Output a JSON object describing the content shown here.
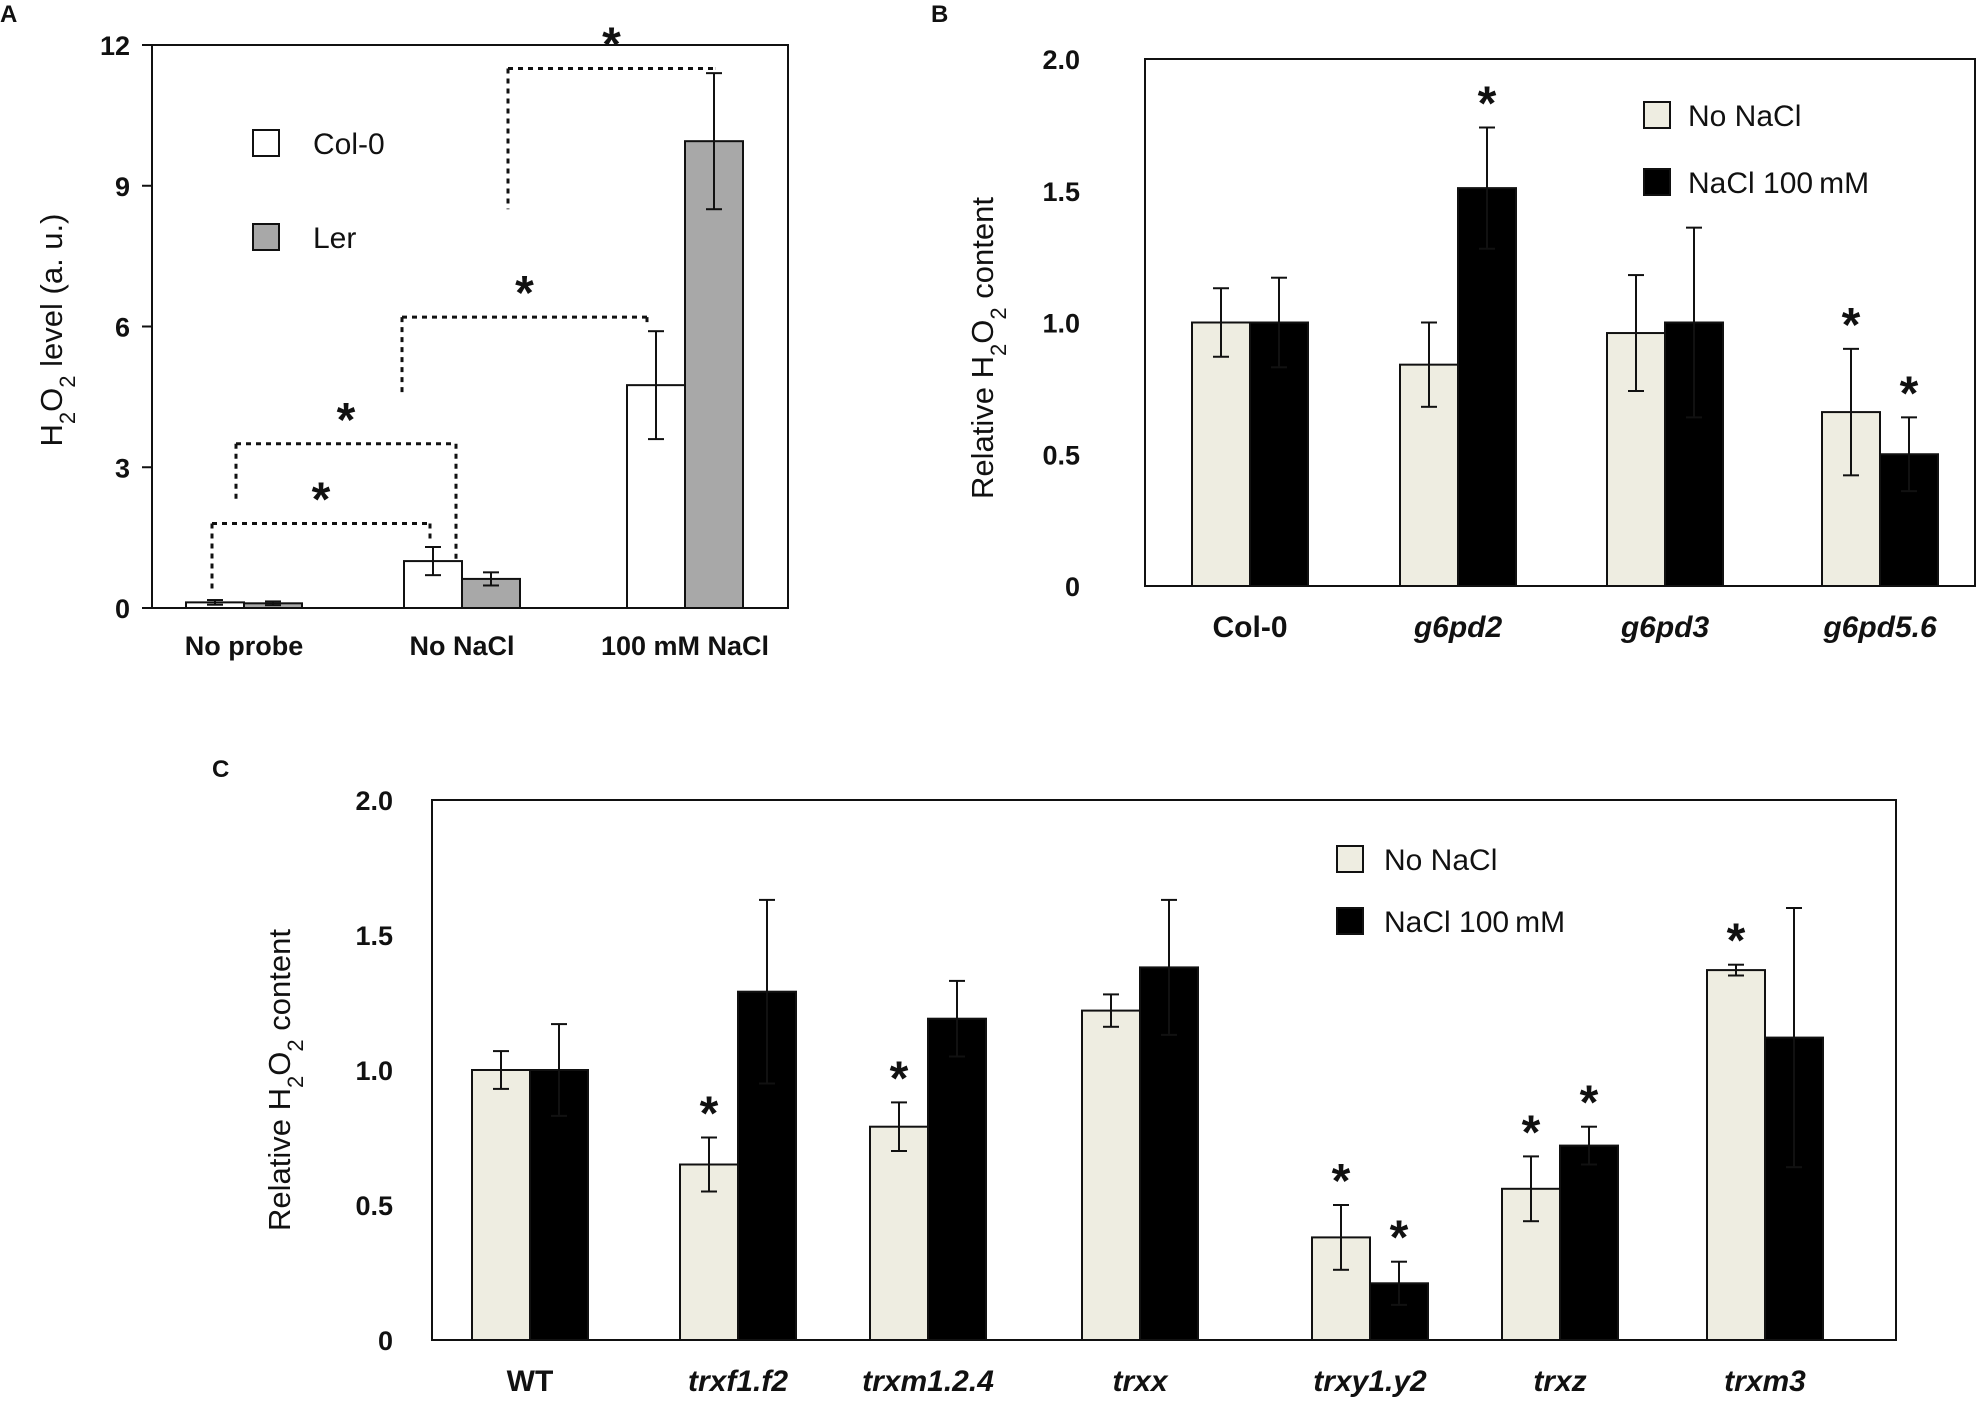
{
  "chart_data": [
    {
      "panel": "A",
      "type": "bar",
      "ylabel_parts": [
        "H",
        "2",
        "O",
        "2",
        " level (a. u.)"
      ],
      "ylim": [
        0,
        12
      ],
      "yticks": [
        "0",
        "3",
        "6",
        "9",
        "12"
      ],
      "categories": [
        "No probe",
        "No NaCl",
        "100 mM NaCl"
      ],
      "series": [
        {
          "name": "Col-0",
          "color": "#ffffff",
          "values": [
            0.12,
            1.0,
            4.75
          ],
          "errors": [
            0.05,
            0.3,
            1.15
          ]
        },
        {
          "name": "Ler",
          "color": "#a8a8a8",
          "values": [
            0.1,
            0.62,
            9.95
          ],
          "errors": [
            0.04,
            0.14,
            1.45
          ]
        }
      ],
      "significance": [
        "*",
        "*",
        "*",
        "*"
      ],
      "legend": "left"
    },
    {
      "panel": "B",
      "type": "bar",
      "ylabel_parts": [
        "Relative H",
        "2",
        "O",
        "2",
        " content"
      ],
      "ylim": [
        0,
        2
      ],
      "yticks": [
        "0",
        "0.5",
        "1.0",
        "1.5",
        "2.0"
      ],
      "categories": [
        "Col-0",
        "g6pd2",
        "g6pd3",
        "g6pd5.6"
      ],
      "series": [
        {
          "name": "No NaCl",
          "color": "#eeede1",
          "values": [
            1.0,
            0.84,
            0.96,
            0.66
          ],
          "errors": [
            0.13,
            0.16,
            0.22,
            0.24
          ],
          "stars": [
            "",
            "",
            "",
            "*"
          ]
        },
        {
          "name": "NaCl 100 mM",
          "color": "#000000",
          "values": [
            1.0,
            1.51,
            1.0,
            0.5
          ],
          "errors": [
            0.17,
            0.23,
            0.36,
            0.14
          ],
          "stars": [
            "",
            "*",
            "",
            "*"
          ]
        }
      ],
      "legend": "top-right"
    },
    {
      "panel": "C",
      "type": "bar",
      "ylabel_parts": [
        "Relative H",
        "2",
        "O",
        "2",
        " content"
      ],
      "ylim": [
        0,
        2
      ],
      "yticks": [
        "0",
        "0.5",
        "1.0",
        "1.5",
        "2.0"
      ],
      "categories": [
        "WT",
        "trxf1.f2",
        "trxm1.2.4",
        "trxx",
        "trxy1.y2",
        "trxz",
        "trxm3"
      ],
      "series": [
        {
          "name": "No NaCl",
          "color": "#eeede1",
          "values": [
            1.0,
            0.65,
            0.79,
            1.22,
            0.38,
            0.56,
            1.37
          ],
          "errors": [
            0.07,
            0.1,
            0.09,
            0.06,
            0.12,
            0.12,
            0.02
          ],
          "stars": [
            "",
            "*",
            "*",
            "",
            "*",
            "*",
            "*"
          ]
        },
        {
          "name": "NaCl 100 mM",
          "color": "#000000",
          "values": [
            1.0,
            1.29,
            1.19,
            1.38,
            0.21,
            0.72,
            1.12
          ],
          "errors": [
            0.17,
            0.34,
            0.14,
            0.25,
            0.08,
            0.07,
            0.48
          ],
          "stars": [
            "",
            "",
            "",
            "",
            "*",
            "*",
            ""
          ]
        }
      ],
      "legend": "top-center"
    }
  ]
}
